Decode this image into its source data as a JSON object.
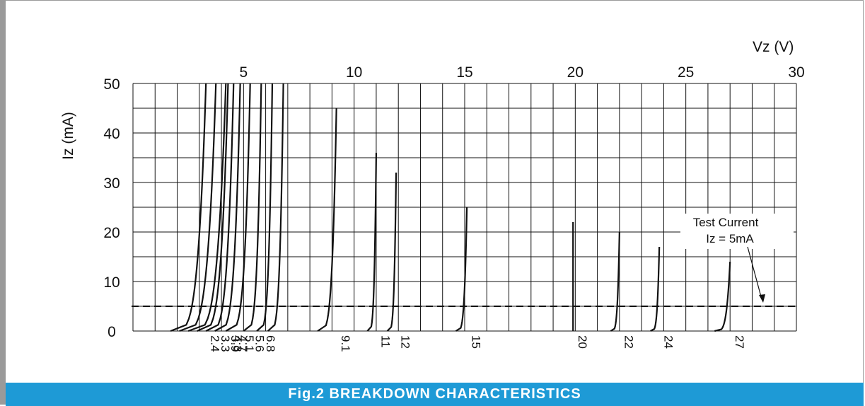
{
  "figure": {
    "caption": "Fig.2 BREAKDOWN CHARACTERISTICS",
    "border_color": "#9a9a9a",
    "caption_bg": "#1e9ad6"
  },
  "chart_data": {
    "type": "line",
    "title": "",
    "xlabel": "Vz (V)",
    "ylabel": "Iz (mA)",
    "xlim": [
      0,
      30
    ],
    "ylim": [
      0,
      50
    ],
    "x_ticks": [
      "5",
      "10",
      "15",
      "20",
      "25",
      "30"
    ],
    "y_ticks": [
      "0",
      "10",
      "20",
      "30",
      "40",
      "50"
    ],
    "grid": true,
    "test_current": {
      "value": 5,
      "label_line1": "Test Current",
      "label_line2": "Iz = 5mA"
    },
    "series": [
      {
        "label": "2.4",
        "x_start": 1.7,
        "x_end": 3.3,
        "i_max": 50
      },
      {
        "label": "3.3",
        "x_start": 2.1,
        "x_end": 3.75,
        "i_max": 50
      },
      {
        "label": "3.9",
        "x_start": 2.5,
        "x_end": 4.2,
        "i_max": 50
      },
      {
        "label": "4.3",
        "x_start": 2.9,
        "x_end": 4.3,
        "i_max": 50
      },
      {
        "label": "4.7",
        "x_start": 3.3,
        "x_end": 4.55,
        "i_max": 50
      },
      {
        "label": "5.1",
        "x_start": 3.7,
        "x_end": 4.85,
        "i_max": 50
      },
      {
        "label": "5.6",
        "x_start": 4.2,
        "x_end": 5.3,
        "i_max": 50
      },
      {
        "label": "6.8",
        "x_start": 5.0,
        "x_end": 5.8,
        "i_max": 50
      },
      {
        "label": "",
        "x_start": 5.6,
        "x_end": 6.3,
        "i_max": 50
      },
      {
        "label": "",
        "x_start": 6.1,
        "x_end": 6.8,
        "i_max": 50
      },
      {
        "label": "9.1",
        "x_start": 8.35,
        "x_end": 9.2,
        "i_max": 45
      },
      {
        "label": "11",
        "x_start": 10.6,
        "x_end": 11.0,
        "i_max": 36
      },
      {
        "label": "12",
        "x_start": 11.5,
        "x_end": 11.9,
        "i_max": 32
      },
      {
        "label": "15",
        "x_start": 14.6,
        "x_end": 15.1,
        "i_max": 25
      },
      {
        "label": "20",
        "x_start": 19.9,
        "x_end": 19.9,
        "i_max": 22
      },
      {
        "label": "22",
        "x_start": 21.6,
        "x_end": 22.0,
        "i_max": 20
      },
      {
        "label": "24",
        "x_start": 23.4,
        "x_end": 23.8,
        "i_max": 17
      },
      {
        "label": "27",
        "x_start": 26.3,
        "x_end": 27.0,
        "i_max": 14
      }
    ]
  }
}
